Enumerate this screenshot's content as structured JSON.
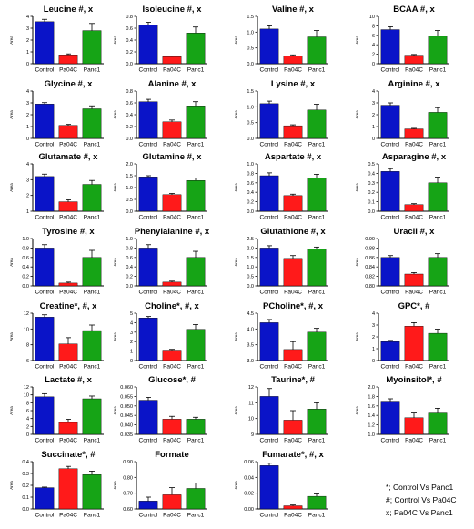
{
  "colors": {
    "control": "#0a14c8",
    "pa04c": "#ff1a1a",
    "panc1": "#16a416"
  },
  "legend_note": [
    "*; Control Vs Panc1",
    "#; Control Vs Pa04C",
    "x; Pa04C Vs Panc1"
  ],
  "chart_data": [
    {
      "type": "bar",
      "title": "Leucine #, x",
      "ylabel": "Area",
      "categories": [
        "Control",
        "Pa04C",
        "Panc1"
      ],
      "values": [
        3.55,
        0.75,
        2.8
      ],
      "errors": [
        0.2,
        0.08,
        0.6
      ],
      "ylim": [
        0,
        4
      ],
      "yticks": [
        "0",
        "1",
        "2",
        "3",
        "4"
      ]
    },
    {
      "type": "bar",
      "title": "Isoleucine #, x",
      "ylabel": "Area",
      "categories": [
        "Control",
        "Pa04C",
        "Panc1"
      ],
      "values": [
        0.65,
        0.12,
        0.52
      ],
      "errors": [
        0.05,
        0.01,
        0.1
      ],
      "ylim": [
        0,
        0.8
      ],
      "yticks": [
        "0.0",
        "0.2",
        "0.4",
        "0.6",
        "0.8"
      ]
    },
    {
      "type": "bar",
      "title": "Valine #, x",
      "ylabel": "Area",
      "categories": [
        "Control",
        "Pa04C",
        "Panc1"
      ],
      "values": [
        1.1,
        0.25,
        0.85
      ],
      "errors": [
        0.1,
        0.03,
        0.2
      ],
      "ylim": [
        0,
        1.5
      ],
      "yticks": [
        "0.0",
        "0.5",
        "1.0",
        "1.5"
      ]
    },
    {
      "type": "bar",
      "title": "BCAA #, x",
      "ylabel": "Area",
      "categories": [
        "Control",
        "Pa04C",
        "Panc1"
      ],
      "values": [
        7.2,
        1.8,
        5.8
      ],
      "errors": [
        0.6,
        0.15,
        1.2
      ],
      "ylim": [
        0,
        10
      ],
      "yticks": [
        "0",
        "2",
        "4",
        "6",
        "8",
        "10"
      ]
    },
    {
      "type": "bar",
      "title": "Glycine #, x",
      "ylabel": "Area",
      "categories": [
        "Control",
        "Pa04C",
        "Panc1"
      ],
      "values": [
        2.9,
        1.1,
        2.5
      ],
      "errors": [
        0.12,
        0.08,
        0.25
      ],
      "ylim": [
        0,
        4
      ],
      "yticks": [
        "0",
        "1",
        "2",
        "3",
        "4"
      ]
    },
    {
      "type": "bar",
      "title": "Alanine #, x",
      "ylabel": "Area",
      "categories": [
        "Control",
        "Pa04C",
        "Panc1"
      ],
      "values": [
        0.62,
        0.28,
        0.55
      ],
      "errors": [
        0.04,
        0.03,
        0.07
      ],
      "ylim": [
        0,
        0.8
      ],
      "yticks": [
        "0.0",
        "0.2",
        "0.4",
        "0.6",
        "0.8"
      ]
    },
    {
      "type": "bar",
      "title": "Lysine #, x",
      "ylabel": "Area",
      "categories": [
        "Control",
        "Pa04C",
        "Panc1"
      ],
      "values": [
        1.1,
        0.4,
        0.9
      ],
      "errors": [
        0.08,
        0.03,
        0.18
      ],
      "ylim": [
        0,
        1.5
      ],
      "yticks": [
        "0.0",
        "0.5",
        "1.0",
        "1.5"
      ]
    },
    {
      "type": "bar",
      "title": "Arginine #, x",
      "ylabel": "Area",
      "categories": [
        "Control",
        "Pa04C",
        "Panc1"
      ],
      "values": [
        2.8,
        0.8,
        2.2
      ],
      "errors": [
        0.2,
        0.05,
        0.4
      ],
      "ylim": [
        0,
        4
      ],
      "yticks": [
        "0",
        "1",
        "2",
        "3",
        "4"
      ]
    },
    {
      "type": "bar",
      "title": "Glutamate #, x",
      "ylabel": "Area",
      "categories": [
        "Control",
        "Pa04C",
        "Panc1"
      ],
      "values": [
        3.2,
        1.6,
        2.7
      ],
      "errors": [
        0.15,
        0.12,
        0.25
      ],
      "ylim": [
        1,
        4
      ],
      "yticks": [
        "1",
        "2",
        "3",
        "4"
      ]
    },
    {
      "type": "bar",
      "title": "Glutamine #, x",
      "ylabel": "Area",
      "categories": [
        "Control",
        "Pa04C",
        "Panc1"
      ],
      "values": [
        1.45,
        0.7,
        1.3
      ],
      "errors": [
        0.05,
        0.05,
        0.1
      ],
      "ylim": [
        0,
        2
      ],
      "yticks": [
        "0.0",
        "0.5",
        "1.0",
        "1.5",
        "2.0"
      ]
    },
    {
      "type": "bar",
      "title": "Aspartate #, x",
      "ylabel": "Area",
      "categories": [
        "Control",
        "Pa04C",
        "Panc1"
      ],
      "values": [
        0.75,
        0.33,
        0.7
      ],
      "errors": [
        0.06,
        0.03,
        0.08
      ],
      "ylim": [
        0,
        1
      ],
      "yticks": [
        "0.0",
        "0.2",
        "0.4",
        "0.6",
        "0.8",
        "1.0"
      ]
    },
    {
      "type": "bar",
      "title": "Asparagine #, x",
      "ylabel": "Area",
      "categories": [
        "Control",
        "Pa04C",
        "Panc1"
      ],
      "values": [
        0.42,
        0.07,
        0.3
      ],
      "errors": [
        0.03,
        0.01,
        0.06
      ],
      "ylim": [
        0,
        0.5
      ],
      "yticks": [
        "0.0",
        "0.1",
        "0.2",
        "0.3",
        "0.4",
        "0.5"
      ]
    },
    {
      "type": "bar",
      "title": "Tyrosine #, x",
      "ylabel": "Area",
      "categories": [
        "Control",
        "Pa04C",
        "Panc1"
      ],
      "values": [
        0.8,
        0.06,
        0.6
      ],
      "errors": [
        0.07,
        0.02,
        0.15
      ],
      "ylim": [
        0,
        1
      ],
      "yticks": [
        "0.0",
        "0.2",
        "0.4",
        "0.6",
        "0.8",
        "1.0"
      ]
    },
    {
      "type": "bar",
      "title": "Phenylalanine #, x",
      "ylabel": "Area",
      "categories": [
        "Control",
        "Pa04C",
        "Panc1"
      ],
      "values": [
        0.8,
        0.08,
        0.6
      ],
      "errors": [
        0.07,
        0.02,
        0.13
      ],
      "ylim": [
        0,
        1
      ],
      "yticks": [
        "0.0",
        "0.2",
        "0.4",
        "0.6",
        "0.8",
        "1.0"
      ]
    },
    {
      "type": "bar",
      "title": "Glutathione #, x",
      "ylabel": "Area",
      "categories": [
        "Control",
        "Pa04C",
        "Panc1"
      ],
      "values": [
        2.0,
        1.45,
        1.95
      ],
      "errors": [
        0.12,
        0.15,
        0.1
      ],
      "ylim": [
        0,
        2.5
      ],
      "yticks": [
        "0.0",
        "0.5",
        "1.0",
        "1.5",
        "2.0",
        "2.5"
      ]
    },
    {
      "type": "bar",
      "title": "Uracil #, x",
      "ylabel": "Area",
      "categories": [
        "Control",
        "Pa04C",
        "Panc1"
      ],
      "values": [
        0.86,
        0.825,
        0.86
      ],
      "errors": [
        0.004,
        0.003,
        0.008
      ],
      "ylim": [
        0.8,
        0.9
      ],
      "yticks": [
        "0.80",
        "0.82",
        "0.84",
        "0.86",
        "0.88",
        "0.90"
      ]
    },
    {
      "type": "bar",
      "title": "Creatine*, #, x",
      "ylabel": "Area",
      "categories": [
        "Control",
        "Pa04C",
        "Panc1"
      ],
      "values": [
        11.5,
        8.1,
        9.8
      ],
      "errors": [
        0.3,
        0.8,
        0.7
      ],
      "ylim": [
        6,
        12
      ],
      "yticks": [
        "6",
        "8",
        "10",
        "12"
      ]
    },
    {
      "type": "bar",
      "title": "Choline*, #, x",
      "ylabel": "Area",
      "categories": [
        "Control",
        "Pa04C",
        "Panc1"
      ],
      "values": [
        4.5,
        1.1,
        3.3
      ],
      "errors": [
        0.15,
        0.08,
        0.5
      ],
      "ylim": [
        0,
        5
      ],
      "yticks": [
        "0",
        "1",
        "2",
        "3",
        "4",
        "5"
      ]
    },
    {
      "type": "bar",
      "title": "PCholine*, #, x",
      "ylabel": "Area",
      "categories": [
        "Control",
        "Pa04C",
        "Panc1"
      ],
      "values": [
        4.2,
        3.35,
        3.9
      ],
      "errors": [
        0.1,
        0.25,
        0.12
      ],
      "ylim": [
        3,
        4.5
      ],
      "yticks": [
        "3.0",
        "3.5",
        "4.0",
        "4.5"
      ]
    },
    {
      "type": "bar",
      "title": "GPC*, #",
      "ylabel": "Area",
      "categories": [
        "Control",
        "Pa04C",
        "Panc1"
      ],
      "values": [
        1.6,
        2.9,
        2.3
      ],
      "errors": [
        0.1,
        0.3,
        0.35
      ],
      "ylim": [
        0,
        4
      ],
      "yticks": [
        "0",
        "1",
        "2",
        "3",
        "4"
      ]
    },
    {
      "type": "bar",
      "title": "Lactate #, x",
      "ylabel": "Area",
      "categories": [
        "Control",
        "Pa04C",
        "Panc1"
      ],
      "values": [
        9.5,
        3.0,
        9.0
      ],
      "errors": [
        0.8,
        0.8,
        0.7
      ],
      "ylim": [
        0,
        12
      ],
      "yticks": [
        "0",
        "2",
        "4",
        "6",
        "8",
        "10",
        "12"
      ]
    },
    {
      "type": "bar",
      "title": "Glucose*, #",
      "ylabel": "Area",
      "categories": [
        "Control",
        "Pa04C",
        "Panc1"
      ],
      "values": [
        0.053,
        0.043,
        0.043
      ],
      "errors": [
        0.0015,
        0.0015,
        0.001
      ],
      "ylim": [
        0.035,
        0.06
      ],
      "yticks": [
        "0.035",
        "0.040",
        "0.045",
        "0.050",
        "0.055",
        "0.060"
      ]
    },
    {
      "type": "bar",
      "title": "Taurine*, #",
      "ylabel": "Area",
      "categories": [
        "Control",
        "Pa04C",
        "Panc1"
      ],
      "values": [
        11.4,
        9.9,
        10.6
      ],
      "errors": [
        0.5,
        0.6,
        0.4
      ],
      "ylim": [
        9,
        12
      ],
      "yticks": [
        "9",
        "10",
        "11",
        "12"
      ]
    },
    {
      "type": "bar",
      "title": "Myoinsitol*, #",
      "ylabel": "Area",
      "categories": [
        "Control",
        "Pa04C",
        "Panc1"
      ],
      "values": [
        1.7,
        1.35,
        1.45
      ],
      "errors": [
        0.05,
        0.1,
        0.1
      ],
      "ylim": [
        1.0,
        2.0
      ],
      "yticks": [
        "1.0",
        "1.2",
        "1.4",
        "1.6",
        "1.8",
        "2.0"
      ]
    },
    {
      "type": "bar",
      "title": "Succinate*, #",
      "ylabel": "Area",
      "categories": [
        "Control",
        "Pa04C",
        "Panc1"
      ],
      "values": [
        0.18,
        0.34,
        0.29
      ],
      "errors": [
        0.005,
        0.02,
        0.03
      ],
      "ylim": [
        0,
        0.4
      ],
      "yticks": [
        "0.0",
        "0.1",
        "0.2",
        "0.3",
        "0.4"
      ]
    },
    {
      "type": "bar",
      "title": "Formate",
      "ylabel": "Area",
      "categories": [
        "Control",
        "Pa04C",
        "Panc1"
      ],
      "values": [
        0.65,
        0.69,
        0.73
      ],
      "errors": [
        0.025,
        0.045,
        0.035
      ],
      "ylim": [
        0.6,
        0.9
      ],
      "yticks": [
        "0.60",
        "0.70",
        "0.80",
        "0.90"
      ]
    },
    {
      "type": "bar",
      "title": "Fumarate*, #, x",
      "ylabel": "Area",
      "categories": [
        "Control",
        "Pa04C",
        "Panc1"
      ],
      "values": [
        0.055,
        0.004,
        0.016
      ],
      "errors": [
        0.003,
        0.001,
        0.003
      ],
      "ylim": [
        0,
        0.06
      ],
      "yticks": [
        "0.00",
        "0.02",
        "0.04",
        "0.06"
      ]
    }
  ]
}
